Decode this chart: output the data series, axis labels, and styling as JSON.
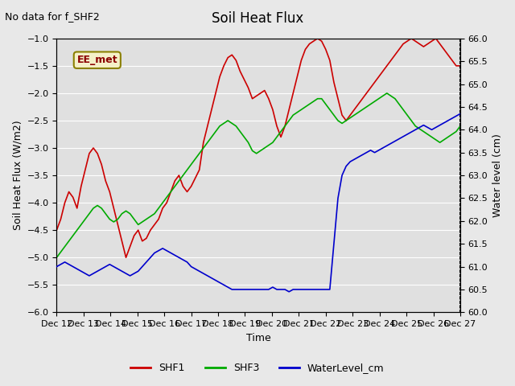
{
  "title": "Soil Heat Flux",
  "subtitle": "No data for f_SHF2",
  "xlabel": "Time",
  "ylabel_left": "Soil Heat Flux (W/m2)",
  "ylabel_right": "Water level (cm)",
  "ylim_left": [
    -6.0,
    -1.0
  ],
  "ylim_right": [
    60.0,
    66.0
  ],
  "yticks_left": [
    -6.0,
    -5.5,
    -5.0,
    -4.5,
    -4.0,
    -3.5,
    -3.0,
    -2.5,
    -2.0,
    -1.5,
    -1.0
  ],
  "yticks_right": [
    60.0,
    60.5,
    61.0,
    61.5,
    62.0,
    62.5,
    63.0,
    63.5,
    64.0,
    64.5,
    65.0,
    65.5,
    66.0
  ],
  "xtick_labels": [
    "Dec 12",
    "Dec 13",
    "Dec 14",
    "Dec 15",
    "Dec 16",
    "Dec 17",
    "Dec 18",
    "Dec 19",
    "Dec 20",
    "Dec 21",
    "Dec 22",
    "Dec 23",
    "Dec 24",
    "Dec 25",
    "Dec 26",
    "Dec 27"
  ],
  "legend_label": "EE_met",
  "legend_entries": [
    "SHF1",
    "SHF3",
    "WaterLevel_cm"
  ],
  "line_colors": [
    "#cc0000",
    "#00aa00",
    "#0000cc"
  ],
  "bg_color": "#e8e8e8",
  "plot_bg_color": "#e0e0e0",
  "grid_color": "#ffffff",
  "shf1": [
    -4.5,
    -4.3,
    -4.0,
    -3.8,
    -3.9,
    -4.1,
    -3.7,
    -3.4,
    -3.1,
    -3.0,
    -3.1,
    -3.3,
    -3.6,
    -3.8,
    -4.1,
    -4.4,
    -4.7,
    -5.0,
    -4.8,
    -4.6,
    -4.5,
    -4.7,
    -4.65,
    -4.5,
    -4.4,
    -4.3,
    -4.1,
    -4.0,
    -3.8,
    -3.6,
    -3.5,
    -3.7,
    -3.8,
    -3.7,
    -3.55,
    -3.4,
    -2.9,
    -2.6,
    -2.3,
    -2.0,
    -1.7,
    -1.5,
    -1.35,
    -1.3,
    -1.4,
    -1.6,
    -1.75,
    -1.9,
    -2.1,
    -2.05,
    -2.0,
    -1.95,
    -2.1,
    -2.3,
    -2.6,
    -2.8,
    -2.6,
    -2.3,
    -2.0,
    -1.7,
    -1.4,
    -1.2,
    -1.1,
    -1.05,
    -1.0,
    -1.05,
    -1.2,
    -1.4,
    -1.8,
    -2.1,
    -2.4,
    -2.5,
    -2.4,
    -2.3,
    -2.2,
    -2.1,
    -2.0,
    -1.9,
    -1.8,
    -1.7,
    -1.6,
    -1.5,
    -1.4,
    -1.3,
    -1.2,
    -1.1,
    -1.05,
    -1.0,
    -1.05,
    -1.1,
    -1.15,
    -1.1,
    -1.05,
    -1.0,
    -1.1,
    -1.2,
    -1.3,
    -1.4,
    -1.5,
    -1.5
  ],
  "shf3": [
    -5.0,
    -4.9,
    -4.8,
    -4.7,
    -4.6,
    -4.5,
    -4.4,
    -4.3,
    -4.2,
    -4.1,
    -4.05,
    -4.1,
    -4.2,
    -4.3,
    -4.35,
    -4.3,
    -4.2,
    -4.15,
    -4.2,
    -4.3,
    -4.4,
    -4.35,
    -4.3,
    -4.25,
    -4.2,
    -4.1,
    -4.0,
    -3.9,
    -3.8,
    -3.7,
    -3.6,
    -3.5,
    -3.4,
    -3.3,
    -3.2,
    -3.1,
    -3.0,
    -2.9,
    -2.8,
    -2.7,
    -2.6,
    -2.55,
    -2.5,
    -2.55,
    -2.6,
    -2.7,
    -2.8,
    -2.9,
    -3.05,
    -3.1,
    -3.05,
    -3.0,
    -2.95,
    -2.9,
    -2.8,
    -2.7,
    -2.6,
    -2.5,
    -2.4,
    -2.35,
    -2.3,
    -2.25,
    -2.2,
    -2.15,
    -2.1,
    -2.1,
    -2.2,
    -2.3,
    -2.4,
    -2.5,
    -2.55,
    -2.5,
    -2.45,
    -2.4,
    -2.35,
    -2.3,
    -2.25,
    -2.2,
    -2.15,
    -2.1,
    -2.05,
    -2.0,
    -2.05,
    -2.1,
    -2.2,
    -2.3,
    -2.4,
    -2.5,
    -2.6,
    -2.65,
    -2.7,
    -2.75,
    -2.8,
    -2.85,
    -2.9,
    -2.85,
    -2.8,
    -2.75,
    -2.7,
    -2.6
  ],
  "wl": [
    61.0,
    61.05,
    61.1,
    61.05,
    61.0,
    60.95,
    60.9,
    60.85,
    60.8,
    60.85,
    60.9,
    60.95,
    61.0,
    61.05,
    61.0,
    60.95,
    60.9,
    60.85,
    60.8,
    60.85,
    60.9,
    61.0,
    61.1,
    61.2,
    61.3,
    61.35,
    61.4,
    61.35,
    61.3,
    61.25,
    61.2,
    61.15,
    61.1,
    61.0,
    60.95,
    60.9,
    60.85,
    60.8,
    60.75,
    60.7,
    60.65,
    60.6,
    60.55,
    60.5,
    60.5,
    60.5,
    60.5,
    60.5,
    60.5,
    60.5,
    60.5,
    60.5,
    60.5,
    60.55,
    60.5,
    60.5,
    60.5,
    60.45,
    60.5,
    60.5,
    60.5,
    60.5,
    60.5,
    60.5,
    60.5,
    60.5,
    60.5,
    60.5,
    61.5,
    62.5,
    63.0,
    63.2,
    63.3,
    63.35,
    63.4,
    63.45,
    63.5,
    63.55,
    63.5,
    63.55,
    63.6,
    63.65,
    63.7,
    63.75,
    63.8,
    63.85,
    63.9,
    63.95,
    64.0,
    64.05,
    64.1,
    64.05,
    64.0,
    64.05,
    64.1,
    64.15,
    64.2,
    64.25,
    64.3,
    64.35
  ]
}
